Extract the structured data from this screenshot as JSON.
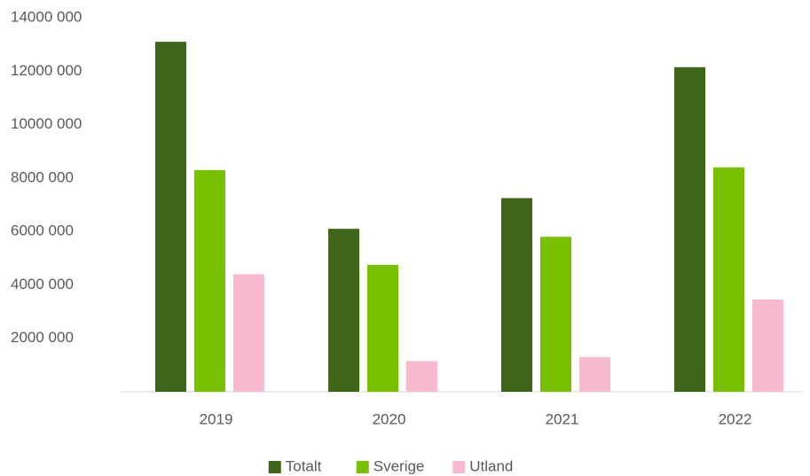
{
  "chart_data": {
    "type": "bar",
    "categories": [
      "2019",
      "2020",
      "2021",
      "2022"
    ],
    "series": [
      {
        "name": "Totalt",
        "color": "#3f6618",
        "values": [
          13100000,
          6100000,
          7250000,
          12150000
        ]
      },
      {
        "name": "Sverige",
        "color": "#78c000",
        "values": [
          8300000,
          4750000,
          5800000,
          8400000
        ]
      },
      {
        "name": "Utland",
        "color": "#f9bad0",
        "values": [
          4400000,
          1150000,
          1300000,
          3450000
        ]
      }
    ],
    "ylim": [
      0,
      14000000
    ],
    "yticks": [
      {
        "value": 2000000,
        "label": "2000 000"
      },
      {
        "value": 4000000,
        "label": "4000 000"
      },
      {
        "value": 6000000,
        "label": "6000 000"
      },
      {
        "value": 8000000,
        "label": "8000 000"
      },
      {
        "value": 10000000,
        "label": "10000 000"
      },
      {
        "value": 12000000,
        "label": "12000 000"
      },
      {
        "value": 14000000,
        "label": "14000 000"
      }
    ],
    "grid": false,
    "legend": "bottom"
  }
}
